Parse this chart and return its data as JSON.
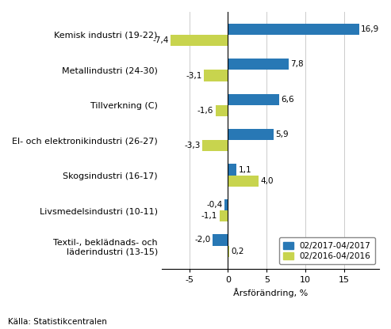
{
  "categories": [
    "Kemisk industri (19-22)",
    "Metallindustri (24-30)",
    "Tillverkning (C)",
    "El- och elektronikindustri (26-27)",
    "Skogsindustri (16-17)",
    "Livsmedelsindustri (10-11)",
    "Textil-, beklädnads- och\nläderindustri (13-15)"
  ],
  "values_2017": [
    16.9,
    7.8,
    6.6,
    5.9,
    1.1,
    -0.4,
    -2.0
  ],
  "values_2016": [
    -7.4,
    -3.1,
    -1.6,
    -3.3,
    4.0,
    -1.1,
    0.2
  ],
  "color_2017": "#2878b5",
  "color_2016": "#c8d44e",
  "bar_height": 0.32,
  "xlim": [
    -8.5,
    19.5
  ],
  "xticks": [
    -5,
    0,
    5,
    10,
    15
  ],
  "xlabel": "Årsförändring, %",
  "legend_2017": "02/2017-04/2017",
  "legend_2016": "02/2016-04/2016",
  "source": "Källa: Statistikcentralen",
  "label_fontsize": 8,
  "tick_fontsize": 8,
  "value_fontsize": 7.5
}
